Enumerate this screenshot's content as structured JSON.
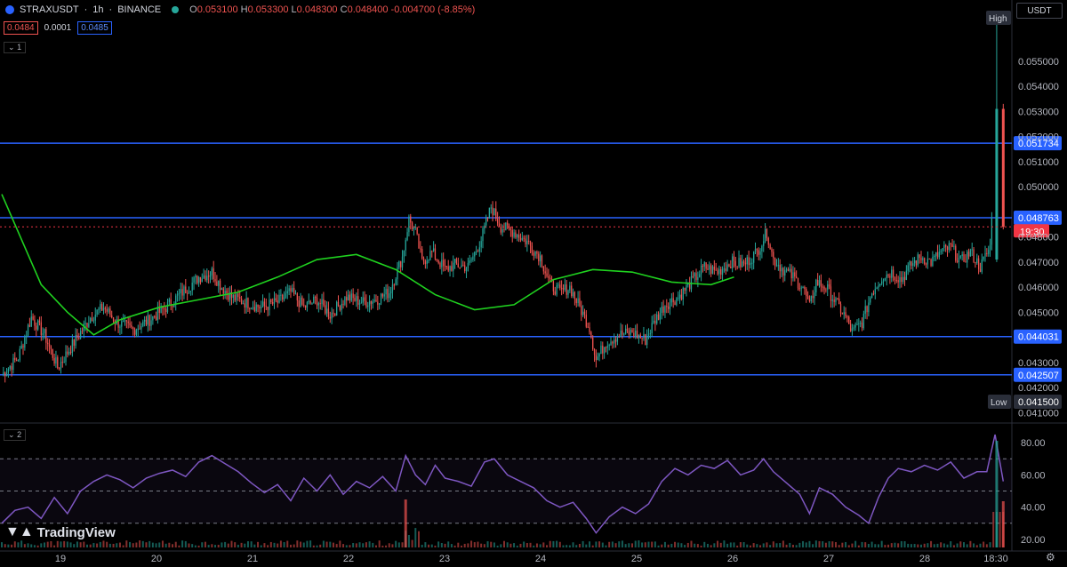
{
  "header": {
    "symbol": "STRAXUSDT",
    "interval": "1h",
    "exchange": "BINANCE",
    "open_label": "O",
    "open": "0.053100",
    "high_label": "H",
    "high": "0.053300",
    "low_label": "L",
    "low": "0.048300",
    "close_label": "C",
    "close": "0.048400",
    "change": "-0.004700 (-8.85%)",
    "bid": "0.0484",
    "spread": "0.0001",
    "ask": "0.0485",
    "main_pane_tag": "1",
    "rsi_pane_tag": "2",
    "currency": "USDT",
    "brand": "TradingView"
  },
  "colors": {
    "up": "#26a69a",
    "down": "#ef5350",
    "ma": "#1fd11f",
    "level_line": "#2962ff",
    "rsi": "#7e57c2",
    "current_price": "#f23645"
  },
  "chart_data": [
    {
      "type": "candlestick",
      "timeframe": "1h",
      "x_tick_labels": [
        "19",
        "20",
        "21",
        "22",
        "23",
        "24",
        "25",
        "26",
        "27",
        "28",
        "18:30"
      ],
      "y_tick_labels": [
        "0.041000",
        "0.042000",
        "0.043000",
        "0.045000",
        "0.046000",
        "0.047000",
        "0.048000",
        "0.050000",
        "0.051000",
        "0.052000",
        "0.053000",
        "0.054000",
        "0.055000"
      ],
      "ylim": [
        0.0408,
        0.0568
      ],
      "moving_average": [
        [
          0,
          0.0497
        ],
        [
          24,
          0.0461
        ],
        [
          40,
          0.045
        ],
        [
          56,
          0.0441
        ],
        [
          72,
          0.0447
        ],
        [
          96,
          0.0452
        ],
        [
          120,
          0.0455
        ],
        [
          144,
          0.0458
        ],
        [
          168,
          0.0464
        ],
        [
          192,
          0.0471
        ],
        [
          216,
          0.0473
        ],
        [
          240,
          0.0467
        ],
        [
          264,
          0.0457
        ],
        [
          288,
          0.0451
        ],
        [
          312,
          0.0453
        ],
        [
          336,
          0.0463
        ],
        [
          360,
          0.0467
        ],
        [
          384,
          0.0466
        ],
        [
          408,
          0.0462
        ],
        [
          432,
          0.0461
        ],
        [
          446,
          0.0464
        ]
      ],
      "close_path": [
        [
          0,
          0.0425
        ],
        [
          10,
          0.0432
        ],
        [
          18,
          0.0448
        ],
        [
          26,
          0.0441
        ],
        [
          34,
          0.0428
        ],
        [
          42,
          0.0436
        ],
        [
          54,
          0.0448
        ],
        [
          62,
          0.0452
        ],
        [
          70,
          0.0446
        ],
        [
          80,
          0.0443
        ],
        [
          90,
          0.0447
        ],
        [
          100,
          0.0452
        ],
        [
          110,
          0.0458
        ],
        [
          120,
          0.0464
        ],
        [
          128,
          0.0466
        ],
        [
          134,
          0.046
        ],
        [
          140,
          0.0456
        ],
        [
          148,
          0.0454
        ],
        [
          158,
          0.0452
        ],
        [
          168,
          0.0454
        ],
        [
          176,
          0.0458
        ],
        [
          184,
          0.0452
        ],
        [
          192,
          0.0455
        ],
        [
          200,
          0.0449
        ],
        [
          210,
          0.0456
        ],
        [
          220,
          0.0454
        ],
        [
          228,
          0.0455
        ],
        [
          236,
          0.0458
        ],
        [
          244,
          0.0472
        ],
        [
          248,
          0.0487
        ],
        [
          252,
          0.0482
        ],
        [
          256,
          0.047
        ],
        [
          262,
          0.0474
        ],
        [
          270,
          0.0467
        ],
        [
          276,
          0.0469
        ],
        [
          284,
          0.0468
        ],
        [
          292,
          0.0479
        ],
        [
          298,
          0.0492
        ],
        [
          304,
          0.0484
        ],
        [
          312,
          0.0482
        ],
        [
          320,
          0.0478
        ],
        [
          328,
          0.0472
        ],
        [
          334,
          0.0461
        ],
        [
          340,
          0.0458
        ],
        [
          346,
          0.046
        ],
        [
          352,
          0.0452
        ],
        [
          358,
          0.0444
        ],
        [
          362,
          0.0431
        ],
        [
          368,
          0.0438
        ],
        [
          376,
          0.0441
        ],
        [
          384,
          0.0442
        ],
        [
          392,
          0.0439
        ],
        [
          398,
          0.0447
        ],
        [
          404,
          0.0453
        ],
        [
          412,
          0.0456
        ],
        [
          420,
          0.0462
        ],
        [
          428,
          0.0468
        ],
        [
          436,
          0.0466
        ],
        [
          444,
          0.047
        ],
        [
          452,
          0.0469
        ],
        [
          460,
          0.0474
        ],
        [
          466,
          0.0482
        ],
        [
          470,
          0.0471
        ],
        [
          476,
          0.0467
        ],
        [
          482,
          0.0464
        ],
        [
          488,
          0.046
        ],
        [
          492,
          0.0452
        ],
        [
          496,
          0.0462
        ],
        [
          502,
          0.046
        ],
        [
          508,
          0.0454
        ],
        [
          514,
          0.0448
        ],
        [
          518,
          0.0442
        ],
        [
          524,
          0.0446
        ],
        [
          530,
          0.0458
        ],
        [
          536,
          0.0464
        ],
        [
          542,
          0.0466
        ],
        [
          548,
          0.0463
        ],
        [
          554,
          0.0469
        ],
        [
          560,
          0.0472
        ],
        [
          566,
          0.047
        ],
        [
          572,
          0.0474
        ],
        [
          578,
          0.0476
        ],
        [
          584,
          0.047
        ],
        [
          590,
          0.0474
        ],
        [
          596,
          0.0468
        ],
        [
          602,
          0.0476
        ],
        [
          606,
          0.0531
        ],
        [
          610,
          0.0484
        ]
      ],
      "high_candle": {
        "open": 0.0471,
        "high": 0.0568,
        "low": 0.047,
        "close": 0.0531
      },
      "last_candle": {
        "open": 0.0531,
        "high": 0.0533,
        "low": 0.0483,
        "close": 0.0484
      },
      "horizontal_levels": [
        {
          "value": 0.051734,
          "label": "0.051734"
        },
        {
          "value": 0.048763,
          "label": "0.048763"
        },
        {
          "value": 0.044031,
          "label": "0.044031"
        },
        {
          "value": 0.042507,
          "label": "0.042507"
        }
      ],
      "current_price": {
        "value": 0.0484,
        "label": "19:30"
      },
      "high_marker": {
        "label": "High"
      },
      "low_marker": {
        "label": "Low",
        "value_label": "0.041500"
      }
    },
    {
      "type": "line",
      "indicator": "RSI",
      "ylim": [
        15,
        90
      ],
      "y_tick_labels": [
        "20.00",
        "40.00",
        "60.00",
        "80.00"
      ],
      "bands": [
        70,
        50,
        30
      ],
      "values": [
        [
          0,
          30
        ],
        [
          8,
          38
        ],
        [
          16,
          40
        ],
        [
          24,
          33
        ],
        [
          32,
          46
        ],
        [
          40,
          36
        ],
        [
          48,
          50
        ],
        [
          56,
          56
        ],
        [
          64,
          60
        ],
        [
          72,
          57
        ],
        [
          80,
          52
        ],
        [
          88,
          58
        ],
        [
          96,
          61
        ],
        [
          104,
          63
        ],
        [
          112,
          59
        ],
        [
          120,
          68
        ],
        [
          128,
          72
        ],
        [
          136,
          67
        ],
        [
          144,
          62
        ],
        [
          152,
          55
        ],
        [
          160,
          49
        ],
        [
          168,
          54
        ],
        [
          176,
          44
        ],
        [
          184,
          58
        ],
        [
          192,
          50
        ],
        [
          200,
          60
        ],
        [
          208,
          48
        ],
        [
          216,
          56
        ],
        [
          224,
          52
        ],
        [
          232,
          59
        ],
        [
          240,
          50
        ],
        [
          246,
          72
        ],
        [
          252,
          60
        ],
        [
          258,
          54
        ],
        [
          264,
          66
        ],
        [
          270,
          58
        ],
        [
          278,
          56
        ],
        [
          286,
          53
        ],
        [
          294,
          68
        ],
        [
          300,
          70
        ],
        [
          308,
          60
        ],
        [
          316,
          56
        ],
        [
          324,
          52
        ],
        [
          332,
          44
        ],
        [
          340,
          40
        ],
        [
          348,
          43
        ],
        [
          356,
          33
        ],
        [
          362,
          24
        ],
        [
          370,
          34
        ],
        [
          378,
          40
        ],
        [
          386,
          36
        ],
        [
          394,
          42
        ],
        [
          402,
          56
        ],
        [
          410,
          64
        ],
        [
          418,
          60
        ],
        [
          426,
          66
        ],
        [
          434,
          64
        ],
        [
          442,
          69
        ],
        [
          450,
          60
        ],
        [
          458,
          63
        ],
        [
          464,
          70
        ],
        [
          470,
          62
        ],
        [
          478,
          55
        ],
        [
          486,
          48
        ],
        [
          492,
          36
        ],
        [
          498,
          52
        ],
        [
          506,
          48
        ],
        [
          514,
          40
        ],
        [
          522,
          35
        ],
        [
          528,
          30
        ],
        [
          534,
          46
        ],
        [
          540,
          58
        ],
        [
          546,
          64
        ],
        [
          554,
          62
        ],
        [
          562,
          66
        ],
        [
          570,
          63
        ],
        [
          578,
          68
        ],
        [
          586,
          58
        ],
        [
          594,
          62
        ],
        [
          600,
          62
        ],
        [
          605,
          85
        ],
        [
          610,
          56
        ]
      ]
    }
  ]
}
